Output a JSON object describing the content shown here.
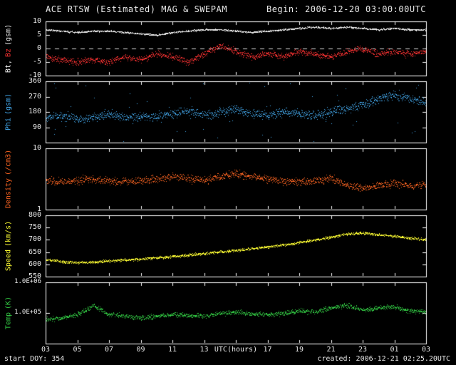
{
  "header": {
    "title": "ACE RTSW (Estimated) MAG & SWEPAM",
    "begin": "Begin: 2006-12-20 03:00:00UTC"
  },
  "footer": {
    "left": "start DOY: 354",
    "right": "created: 2006-12-21 02:25.20UTC"
  },
  "frame_color": "#ffffff",
  "x_axis": {
    "label": "UTC(hours)",
    "range_hours": [
      3,
      27
    ],
    "tick_hours": [
      3,
      5,
      7,
      9,
      11,
      13,
      15,
      17,
      19,
      21,
      23,
      25,
      27
    ],
    "tick_labels": [
      "03",
      "05",
      "07",
      "09",
      "11",
      "13",
      "15",
      "17",
      "19",
      "21",
      "23",
      "01",
      "03"
    ]
  },
  "chart_data": [
    {
      "type": "scatter",
      "panel": "bt-bz-magnetic-field",
      "yscale": "linear",
      "ylim": [
        -10,
        10
      ],
      "yticks": [
        {
          "value": 10,
          "label": "10"
        },
        {
          "value": 5,
          "label": "5"
        },
        {
          "value": 0,
          "label": "0"
        },
        {
          "value": -5,
          "label": "-5"
        },
        {
          "value": -10,
          "label": "-10"
        }
      ],
      "zero_line": 0,
      "ylabel_parts": [
        {
          "text": "Bt,",
          "color": "#f0f0f0"
        },
        {
          "text": "Bz",
          "color": "#ff3333"
        },
        {
          "text": "(gsm)",
          "color": "#f0f0f0"
        }
      ],
      "series": [
        {
          "name": "Bt",
          "color": "#f0f0f0",
          "anchor_start_hour": 3,
          "anchor_step_hours": 1,
          "jitter": 0.45,
          "anchors": [
            7.0,
            6.5,
            6.0,
            6.5,
            6.5,
            6.0,
            5.5,
            5.0,
            6.0,
            6.5,
            7.0,
            7.0,
            6.5,
            6.0,
            6.5,
            7.0,
            7.5,
            8.0,
            7.5,
            8.0,
            7.5,
            7.0,
            7.5,
            7.0,
            7.0
          ]
        },
        {
          "name": "Bz",
          "color": "#ff3333",
          "anchor_start_hour": 3,
          "anchor_step_hours": 1,
          "jitter": 1.7,
          "anchors": [
            -3,
            -4,
            -5,
            -4,
            -5,
            -3,
            -4,
            -2,
            -3,
            -5,
            -2,
            1,
            -1,
            -3,
            -2,
            -3,
            -1,
            -2,
            -3,
            -1,
            0,
            -2,
            -1,
            -2,
            -1
          ]
        }
      ]
    },
    {
      "type": "scatter",
      "panel": "phi-angle",
      "yscale": "linear",
      "ylim": [
        0,
        360
      ],
      "yticks": [
        {
          "value": 360,
          "label": "360"
        },
        {
          "value": 270,
          "label": "270"
        },
        {
          "value": 180,
          "label": "180"
        },
        {
          "value": 90,
          "label": "90"
        }
      ],
      "ylabel_parts": [
        {
          "text": "Phi",
          "color": "#44aaee"
        },
        {
          "text": "(gsm)",
          "color": "#44aaee"
        }
      ],
      "series": [
        {
          "name": "Phi",
          "color": "#44aaee",
          "anchor_start_hour": 3,
          "anchor_step_hours": 1,
          "jitter": 38,
          "outlier_rate": 0.05,
          "anchors": [
            150,
            160,
            140,
            150,
            170,
            150,
            160,
            150,
            170,
            190,
            160,
            180,
            200,
            170,
            160,
            180,
            170,
            160,
            180,
            200,
            220,
            260,
            280,
            260,
            240
          ]
        }
      ]
    },
    {
      "type": "scatter",
      "panel": "density",
      "yscale": "log",
      "ylim": [
        1,
        10
      ],
      "yticks": [
        {
          "value": 10,
          "label": "10"
        },
        {
          "value": 1,
          "label": "1"
        }
      ],
      "ylabel_parts": [
        {
          "text": "Density",
          "color": "#ff6622"
        },
        {
          "text": "(/cm3)",
          "color": "#ff6622"
        }
      ],
      "series": [
        {
          "name": "Density",
          "color": "#ff6622",
          "anchor_start_hour": 3,
          "anchor_step_hours": 1,
          "jitter": 0.09,
          "anchors": [
            3.0,
            2.8,
            3.0,
            3.2,
            3.0,
            2.8,
            3.0,
            3.2,
            3.5,
            3.2,
            3.0,
            3.5,
            4.0,
            3.5,
            3.2,
            3.0,
            2.8,
            3.0,
            3.2,
            2.5,
            2.2,
            2.5,
            2.8,
            2.5,
            2.5
          ]
        }
      ]
    },
    {
      "type": "scatter",
      "panel": "speed",
      "yscale": "linear",
      "ylim": [
        550,
        800
      ],
      "yticks": [
        {
          "value": 800,
          "label": "800"
        },
        {
          "value": 750,
          "label": "750"
        },
        {
          "value": 700,
          "label": "700"
        },
        {
          "value": 650,
          "label": "650"
        },
        {
          "value": 600,
          "label": "600"
        },
        {
          "value": 550,
          "label": "550"
        }
      ],
      "ylabel_parts": [
        {
          "text": "Speed",
          "color": "#ffff33"
        },
        {
          "text": "(km/s)",
          "color": "#ffff33"
        }
      ],
      "series": [
        {
          "name": "Speed",
          "color": "#ffff33",
          "anchor_start_hour": 3,
          "anchor_step_hours": 1,
          "jitter": 8,
          "anchors": [
            620,
            612,
            608,
            610,
            615,
            618,
            622,
            628,
            632,
            638,
            645,
            652,
            658,
            665,
            672,
            680,
            690,
            700,
            712,
            725,
            730,
            722,
            715,
            708,
            702
          ]
        }
      ]
    },
    {
      "type": "scatter",
      "panel": "temperature",
      "yscale": "log",
      "ylim": [
        10000,
        1000000
      ],
      "yticks": [
        {
          "value": 1000000,
          "label": "1.0E+06"
        },
        {
          "value": 100000,
          "label": "1.0E+05"
        }
      ],
      "ylabel_parts": [
        {
          "text": "Temp",
          "color": "#33cc44"
        },
        {
          "text": "(K)",
          "color": "#33cc44"
        }
      ],
      "series": [
        {
          "name": "Temp",
          "color": "#33cc44",
          "anchor_start_hour": 3,
          "anchor_step_hours": 1,
          "jitter": 0.11,
          "anchors": [
            60000,
            70000,
            90000,
            180000,
            90000,
            80000,
            70000,
            80000,
            90000,
            85000,
            80000,
            100000,
            110000,
            95000,
            90000,
            100000,
            120000,
            110000,
            150000,
            180000,
            130000,
            150000,
            160000,
            120000,
            110000
          ]
        }
      ]
    }
  ]
}
